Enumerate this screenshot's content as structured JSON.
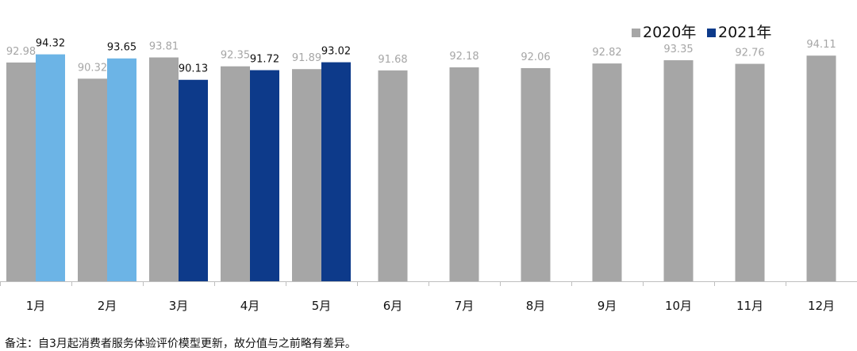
{
  "chart_data": {
    "type": "bar",
    "title": "",
    "xlabel": "",
    "ylabel": "",
    "categories": [
      "1月",
      "2月",
      "3月",
      "4月",
      "5月",
      "6月",
      "7月",
      "8月",
      "9月",
      "10月",
      "11月",
      "12月"
    ],
    "series": [
      {
        "name": "2020年",
        "values": [
          92.98,
          90.32,
          93.81,
          92.35,
          91.89,
          91.68,
          92.18,
          92.06,
          92.82,
          93.35,
          92.76,
          94.11
        ],
        "color": "#a6a6a6",
        "label_color": "#a6a6a6"
      },
      {
        "name": "2021年",
        "values": [
          94.32,
          93.65,
          90.13,
          91.72,
          93.02,
          null,
          null,
          null,
          null,
          null,
          null,
          null
        ],
        "color": "#0d3a8a",
        "point_colors": [
          "#6cb4e6",
          "#6cb4e6",
          "#0d3a8a",
          "#0d3a8a",
          "#0d3a8a",
          null,
          null,
          null,
          null,
          null,
          null,
          null
        ],
        "label_color": "#111111"
      }
    ],
    "ylim": [
      57,
      100
    ],
    "grid": false,
    "legend_position": "top-right"
  },
  "footnote": "备注：自3月起消费者服务体验评价模型更新，故分值与之前略有差异。"
}
